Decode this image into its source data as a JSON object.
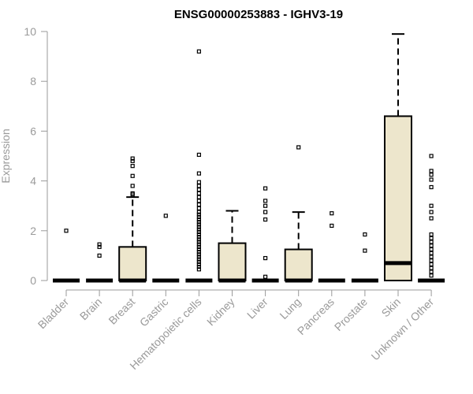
{
  "chart_data": {
    "type": "boxplot",
    "title": "ENSG00000253883 - IGHV3-19",
    "xlabel": "",
    "ylabel": "Expression",
    "ylim": [
      0,
      10
    ],
    "yticks": [
      0,
      2,
      4,
      6,
      8,
      10
    ],
    "grid": false,
    "box_fill": "#ede6cc",
    "categories": [
      "Bladder",
      "Brain",
      "Breast",
      "Gastric",
      "Hematopoietic cells",
      "Kidney",
      "Liver",
      "Lung",
      "Pancreas",
      "Prostate",
      "Skin",
      "Unknown / Other"
    ],
    "boxes": [
      {
        "q1": 0,
        "median": 0,
        "q3": 0,
        "whisker_low": 0,
        "whisker_high": 0,
        "outliers": [
          2.0
        ]
      },
      {
        "q1": 0,
        "median": 0,
        "q3": 0,
        "whisker_low": 0,
        "whisker_high": 0,
        "outliers": [
          1.0,
          1.35,
          1.45
        ]
      },
      {
        "q1": 0,
        "median": 0,
        "q3": 1.35,
        "whisker_low": 0,
        "whisker_high": 3.35,
        "outliers": [
          3.45,
          3.5,
          3.8,
          4.2,
          4.6,
          4.8,
          4.9
        ]
      },
      {
        "q1": 0,
        "median": 0,
        "q3": 0,
        "whisker_low": 0,
        "whisker_high": 0,
        "outliers": [
          2.6
        ]
      },
      {
        "q1": 0,
        "median": 0,
        "q3": 0,
        "whisker_low": 0,
        "whisker_high": 0,
        "outliers": [
          0.45,
          0.55,
          0.65,
          0.75,
          0.85,
          0.95,
          1.05,
          1.15,
          1.25,
          1.35,
          1.45,
          1.55,
          1.65,
          1.75,
          1.85,
          1.95,
          2.05,
          2.15,
          2.25,
          2.35,
          2.45,
          2.55,
          2.65,
          2.75,
          2.9,
          3.05,
          3.2,
          3.35,
          3.5,
          3.65,
          3.8,
          3.95,
          4.3,
          5.05,
          9.2
        ]
      },
      {
        "q1": 0,
        "median": 0,
        "q3": 1.5,
        "whisker_low": 0,
        "whisker_high": 2.8,
        "outliers": []
      },
      {
        "q1": 0,
        "median": 0,
        "q3": 0,
        "whisker_low": 0,
        "whisker_high": 0,
        "outliers": [
          0.15,
          0.9,
          2.45,
          2.75,
          3.0,
          3.2,
          3.7
        ]
      },
      {
        "q1": 0,
        "median": 0,
        "q3": 1.25,
        "whisker_low": 0,
        "whisker_high": 2.75,
        "outliers": [
          5.35
        ]
      },
      {
        "q1": 0,
        "median": 0,
        "q3": 0,
        "whisker_low": 0,
        "whisker_high": 0,
        "outliers": [
          2.2,
          2.7
        ]
      },
      {
        "q1": 0,
        "median": 0,
        "q3": 0,
        "whisker_low": 0,
        "whisker_high": 0,
        "outliers": [
          1.2,
          1.85
        ]
      },
      {
        "q1": 0,
        "median": 0.7,
        "q3": 6.6,
        "whisker_low": 0,
        "whisker_high": 9.9,
        "outliers": []
      },
      {
        "q1": 0,
        "median": 0,
        "q3": 0,
        "whisker_low": 0,
        "whisker_high": 0,
        "outliers": [
          0.2,
          0.35,
          0.5,
          0.65,
          0.8,
          0.95,
          1.1,
          1.25,
          1.4,
          1.55,
          1.7,
          1.85,
          2.5,
          2.75,
          3.0,
          3.75,
          4.05,
          4.25,
          4.4,
          5.0
        ]
      }
    ]
  }
}
